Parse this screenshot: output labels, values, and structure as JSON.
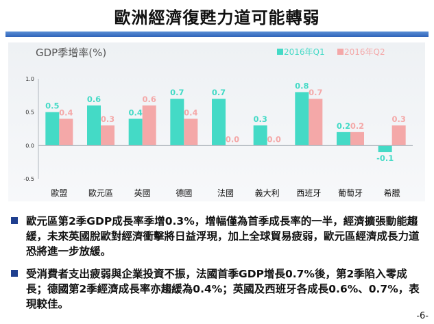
{
  "slide": {
    "title": "歐洲經濟復甦力道可能轉弱",
    "page_number": "-6-"
  },
  "colors": {
    "q1": "#44dac6",
    "q2": "#f4a8a8",
    "title_rule": "#3a6cc2",
    "bullet": "#1f3f8f"
  },
  "chart_data": {
    "type": "bar",
    "title": "GDP季增率(%)",
    "categories": [
      "歐盟",
      "歐元區",
      "英國",
      "德國",
      "法國",
      "義大利",
      "西班牙",
      "葡萄牙",
      "希臘"
    ],
    "series": [
      {
        "name": "2016年Q1",
        "values": [
          0.5,
          0.6,
          0.4,
          0.7,
          0.7,
          0.3,
          0.8,
          0.2,
          -0.1
        ]
      },
      {
        "name": "2016年Q2",
        "values": [
          0.4,
          0.3,
          0.6,
          0.4,
          0.0,
          0.0,
          0.7,
          0.2,
          0.3
        ]
      }
    ],
    "data_labels": [
      [
        "0.5",
        "0.6",
        "0.4",
        "0.7",
        "0.7",
        "0.3",
        "0.8",
        "0.2",
        "-0.1"
      ],
      [
        "0.4",
        "0.3",
        "0.6",
        "0.4",
        "0.0",
        "0.0",
        "0.7",
        "0.2",
        "0.3"
      ]
    ],
    "ylim": [
      -0.5,
      1.0
    ],
    "yticks": [
      -0.5,
      0.0,
      0.5,
      1.0
    ],
    "ytick_labels": [
      "-0.5",
      "0.0",
      "0.5",
      "1.0"
    ],
    "grid": false,
    "legend_position": "top-right"
  },
  "bullets": [
    "歐元區第2季GDP成長率季增0.3%，增幅僅為首季成長率的一半，經濟擴張動能趨緩，未來英國脫歐對經濟衝擊將日益浮現，加上全球貿易疲弱，歐元區經濟成長力道恐將進一步放緩。",
    "受消費者支出疲弱與企業投資不振，法國首季GDP增長0.7%後，第2季陷入零成長；德國第2季經濟成長率亦趨緩為0.4%；英國及西班牙各成長0.6%、0.7%，表現較佳。"
  ]
}
